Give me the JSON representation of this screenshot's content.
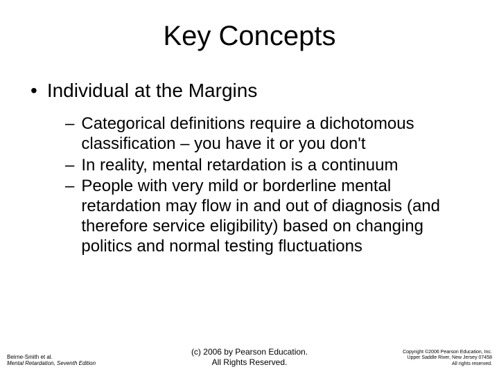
{
  "title": "Key Concepts",
  "bullets": {
    "l1": "Individual at the Margins",
    "l2": [
      "Categorical definitions require a dichotomous classification – you have it or you don't",
      "In reality, mental retardation is a continuum",
      "People with very mild or borderline mental retardation may flow in and out of diagnosis (and therefore service eligibility) based on changing politics and normal testing fluctuations"
    ]
  },
  "footer": {
    "left_line1": "Beirne-Smith et al.",
    "left_line2_italic": "Mental Retardation, Seventh Edition",
    "center_line1": "(c) 2006 by  Pearson Education.",
    "center_line2": "All Rights Reserved.",
    "right_line1": "Copyright ©2006 Pearson Education, Inc.",
    "right_line2": "Upper Saddle River, New Jersey 07458",
    "right_line3": "All rights reserved."
  },
  "markers": {
    "l1": "•",
    "l2": "–"
  },
  "style": {
    "background": "#ffffff",
    "text_color": "#000000",
    "title_fontsize": 40,
    "l1_fontsize": 28,
    "l2_fontsize": 24,
    "footer_left_fontsize": 8,
    "footer_center_fontsize": 12,
    "footer_right_fontsize": 7
  }
}
